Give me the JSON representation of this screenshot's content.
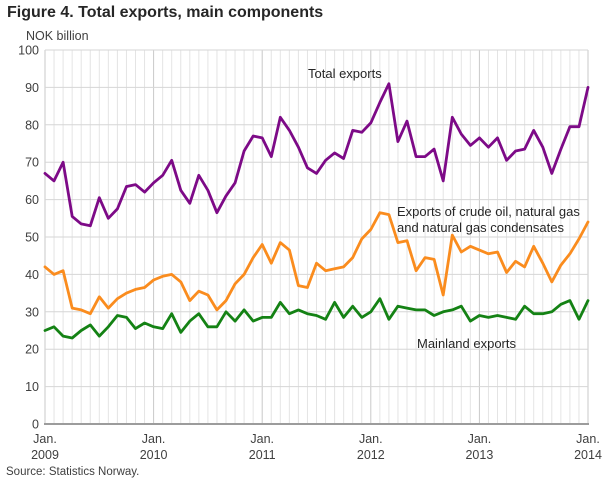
{
  "title": "Figure 4. Total exports, main components",
  "y_axis_label": "NOK billion",
  "source": "Source: Statistics Norway.",
  "annotations": {
    "total": "Total exports",
    "oil_line1": "Exports of crude oil, natural gas",
    "oil_line2": "and natural gas condensates",
    "mainland": "Mainland exports"
  },
  "chart_data": {
    "type": "line",
    "title": "Figure 4. Total exports, main components",
    "ylabel": "NOK billion",
    "ylim": [
      0,
      100
    ],
    "y_ticks": [
      0,
      10,
      20,
      30,
      40,
      50,
      60,
      70,
      80,
      90,
      100
    ],
    "x_unit": "month",
    "x_range": "Jan 2009 - Jan 2014",
    "x_tick_month_label": "Jan.",
    "x_tick_years": [
      "2009",
      "2010",
      "2011",
      "2012",
      "2013",
      "2014"
    ],
    "grid": true,
    "legend_position": "inline-annotations",
    "colors": {
      "grid_minor": "#e4e4e4",
      "grid_year": "#c9c9c9",
      "grid_horizontal": "#d6d6d6",
      "axis": "#9c9c9c",
      "tick_text": "#404040"
    },
    "series": [
      {
        "name": "Total exports",
        "color": "#7D0A87",
        "values": [
          67,
          65,
          70,
          55.5,
          53.5,
          53,
          60.5,
          55,
          57.5,
          63.5,
          64,
          62,
          64.5,
          66.5,
          70.5,
          62.5,
          59,
          66.5,
          62.5,
          56.5,
          61,
          64.5,
          73,
          77,
          76.5,
          71.5,
          82,
          78.5,
          74,
          68.5,
          67,
          70.5,
          72.5,
          71,
          78.5,
          78,
          80.5,
          86,
          91,
          75.5,
          81,
          71.5,
          71.5,
          73.5,
          65,
          82,
          77.5,
          74.5,
          76.5,
          74,
          76.5,
          70.5,
          73,
          73.5,
          78.5,
          74,
          67,
          73.5,
          79.5,
          79.5,
          90
        ]
      },
      {
        "name": "Exports of crude oil, natural gas and natural gas condensates",
        "color": "#FA8C1E",
        "values": [
          42,
          40,
          41,
          31,
          30.5,
          29.5,
          34,
          31,
          33.5,
          35,
          36,
          36.5,
          38.5,
          39.5,
          40,
          38,
          33,
          35.5,
          34.5,
          30.5,
          33,
          37.5,
          40,
          44.5,
          48,
          43,
          48.5,
          46.5,
          37,
          36.5,
          43,
          41,
          41.5,
          42,
          44.5,
          49.5,
          52,
          56.5,
          56,
          48.5,
          49,
          41,
          44.5,
          44,
          34.5,
          50.5,
          46,
          47.5,
          46.5,
          45.5,
          46,
          40.5,
          43.5,
          42,
          47.5,
          43,
          38,
          42.5,
          45.5,
          49.5,
          54
        ]
      },
      {
        "name": "Mainland exports",
        "color": "#148214",
        "values": [
          25,
          26,
          23.5,
          23,
          25,
          26.5,
          23.5,
          26,
          29,
          28.5,
          25.5,
          27,
          26,
          25.5,
          29.5,
          24.5,
          27.5,
          29.5,
          26,
          26,
          30,
          27.5,
          30.5,
          27.5,
          28.5,
          28.5,
          32.5,
          29.5,
          30.5,
          29.5,
          29,
          28,
          32.5,
          28.5,
          31.5,
          28.5,
          30,
          33.5,
          28,
          31.5,
          31,
          30.5,
          30.5,
          29,
          30,
          30.5,
          31.5,
          27.5,
          29,
          28.5,
          29,
          28.5,
          28,
          31.5,
          29.5,
          29.5,
          30,
          32,
          33,
          28,
          33
        ]
      }
    ]
  }
}
